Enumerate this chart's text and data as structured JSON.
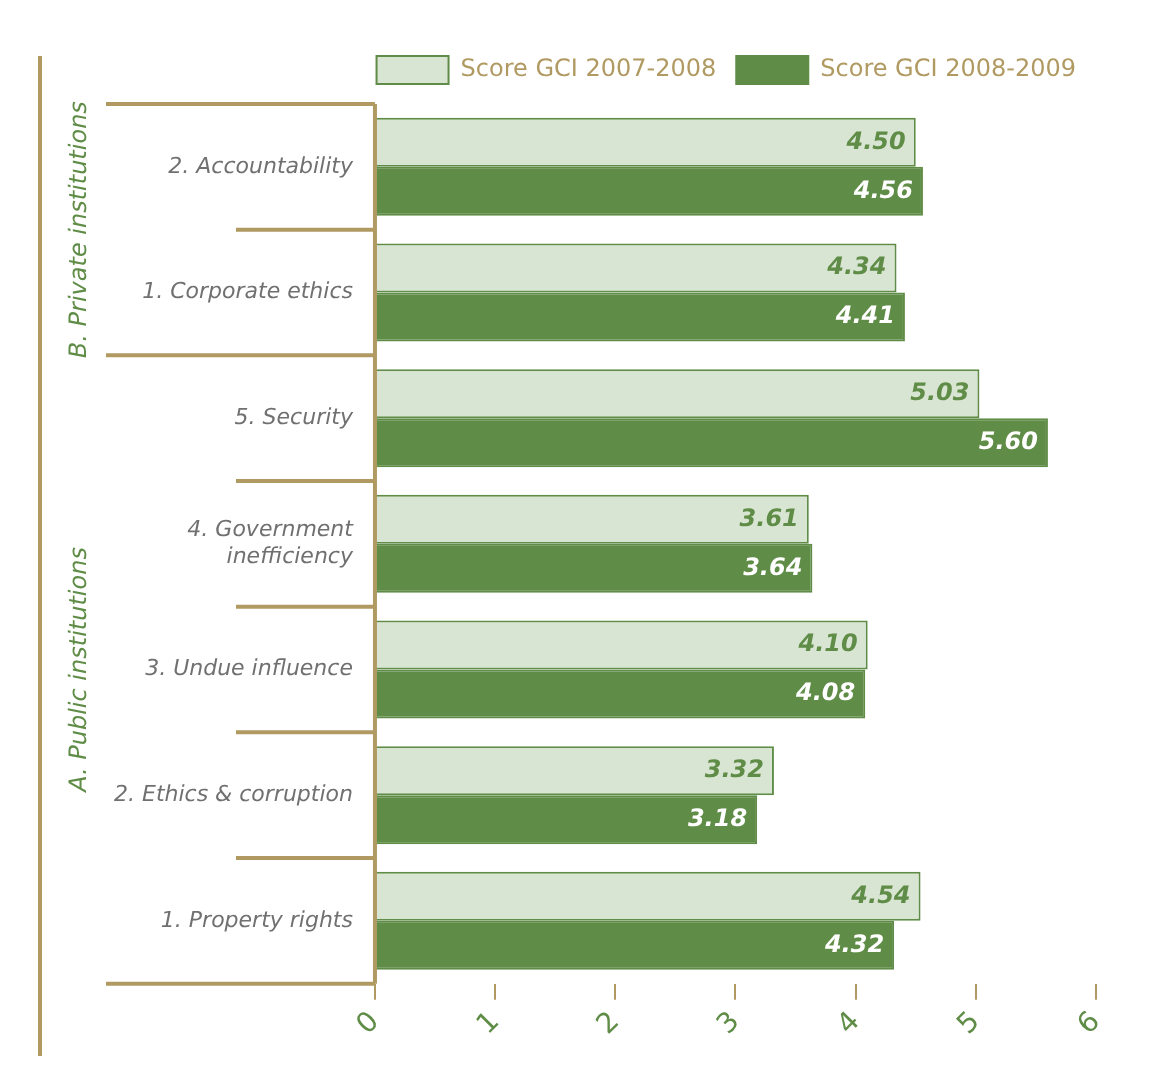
{
  "chart_data": {
    "type": "bar",
    "orientation": "horizontal",
    "categories": [
      "2. Accountability",
      "1. Corporate ethics",
      "5. Security",
      "4. Government inefficiency",
      "3. Undue influence",
      "2. Ethics & corruption",
      "1. Property rights"
    ],
    "series": [
      {
        "name": "Score GCI 2007-2008",
        "color": "#d9e5d3",
        "values": [
          4.5,
          4.34,
          5.03,
          3.61,
          4.1,
          3.32,
          4.54
        ],
        "value_labels": [
          "4.50",
          "4.34",
          "5.03",
          "3.61",
          "4.10",
          "3.32",
          "4.54"
        ]
      },
      {
        "name": "Score GCI 2008-2009",
        "color": "#5f8c46",
        "values": [
          4.56,
          4.41,
          5.6,
          3.64,
          4.08,
          3.18,
          4.32
        ],
        "value_labels": [
          "4.56",
          "4.41",
          "5.60",
          "3.64",
          "4.08",
          "3.18",
          "4.32"
        ]
      }
    ],
    "xlim": [
      0,
      6
    ],
    "xticks": [
      0,
      1,
      2,
      3,
      4,
      5,
      6
    ],
    "legend": "top right",
    "annotations": [
      "B. Private institutions",
      "A. Public institutions"
    ]
  }
}
